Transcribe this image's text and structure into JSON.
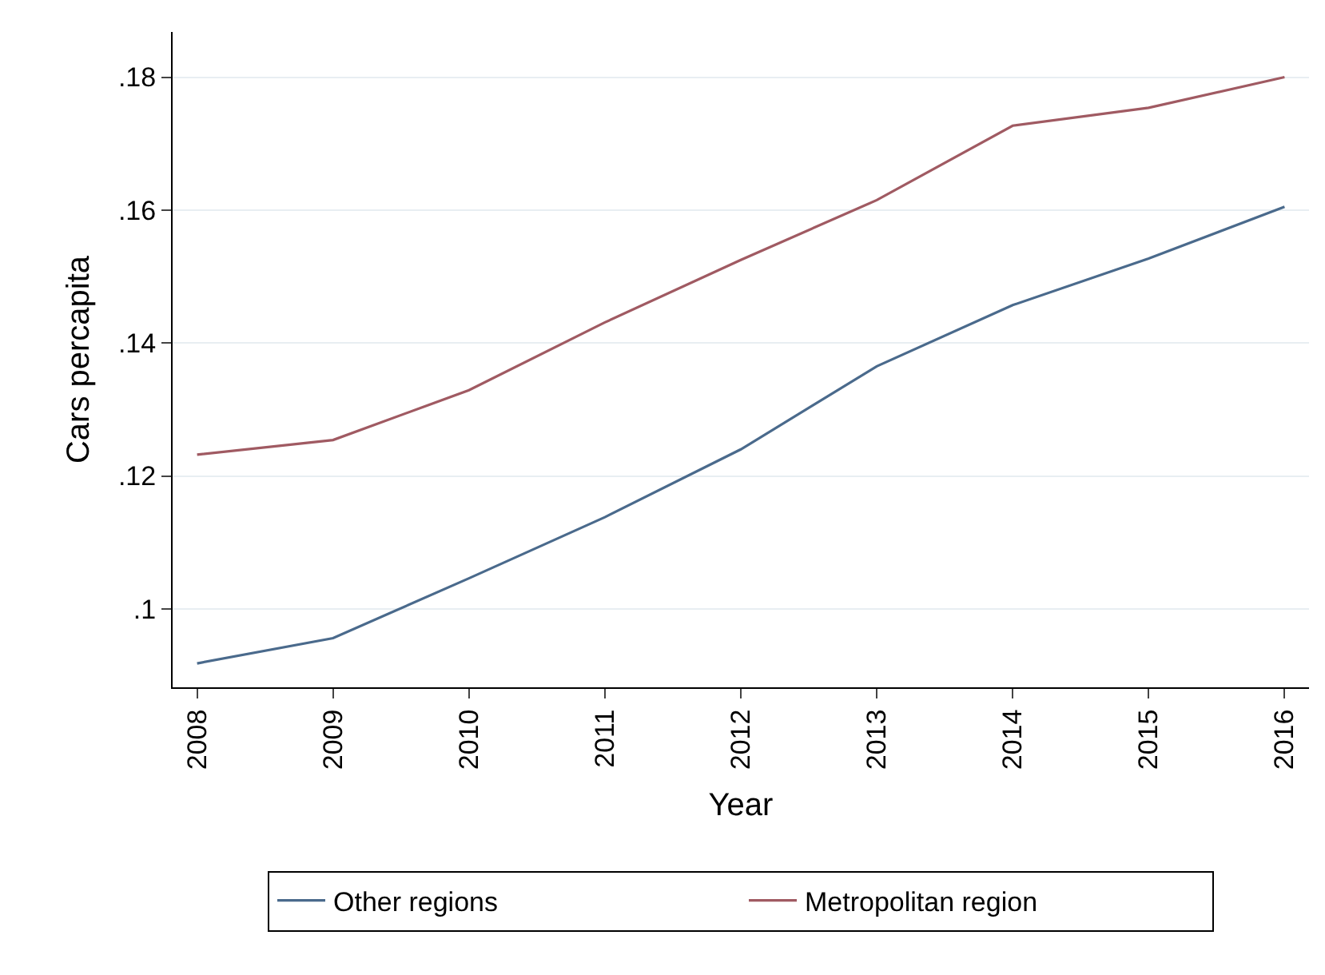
{
  "chart_data": {
    "type": "line",
    "xlabel": "Year",
    "ylabel": "Cars percapita",
    "x": [
      2008,
      2009,
      2010,
      2011,
      2012,
      2013,
      2014,
      2015,
      2016
    ],
    "series": [
      {
        "name": "Other regions",
        "color": "#4a6a8c",
        "values": [
          0.0918,
          0.0956,
          0.1046,
          0.1138,
          0.124,
          0.1365,
          0.1457,
          0.1527,
          0.1605
        ]
      },
      {
        "name": "Metropolitan region",
        "color": "#a05a62",
        "values": [
          0.1232,
          0.1254,
          0.1329,
          0.1431,
          0.1525,
          0.1615,
          0.1727,
          0.1754,
          0.18
        ]
      }
    ],
    "xlim": [
      2007.82,
      2016.18
    ],
    "xticks": [
      2008,
      2009,
      2010,
      2011,
      2012,
      2013,
      2014,
      2015,
      2016
    ],
    "ylim": [
      0.0882,
      0.1868
    ],
    "yticks": [
      {
        "value": 0.1,
        "label": ".1"
      },
      {
        "value": 0.12,
        "label": ".12"
      },
      {
        "value": 0.14,
        "label": ".14"
      },
      {
        "value": 0.16,
        "label": ".16"
      },
      {
        "value": 0.18,
        "label": ".18"
      }
    ],
    "grid": "y",
    "legend": "bottom",
    "line_style": "solid",
    "marker": "none"
  }
}
